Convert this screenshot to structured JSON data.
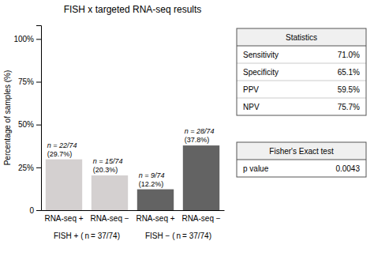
{
  "chart_data": {
    "type": "bar",
    "title": "FISH x targeted RNA-seq results",
    "categories": [
      "RNA-seq +",
      "RNA-seq −",
      "RNA-seq +",
      "RNA-seq −"
    ],
    "values": [
      29.7,
      20.3,
      12.2,
      37.8
    ],
    "colors": [
      "#d4d0d0",
      "#d4d0d0",
      "#636363",
      "#636363"
    ],
    "data_labels": true,
    "value_labels": [
      "(29.7%)",
      "(20.3%)",
      "(12.2%)",
      "(37.8%)"
    ],
    "annotations": [
      "n = 22/74",
      "n = 15/74",
      "n = 9/74",
      "n = 28/74"
    ],
    "groups": [
      "FISH + ( n = 37/74)",
      "FISH − ( n = 37/74)"
    ],
    "ylabel": "Percentage of samples (%)",
    "ylim": [
      0,
      108
    ],
    "yticks": [
      0,
      {
        "value": 25,
        "label": "25%"
      },
      {
        "value": 50,
        "label": "50%"
      },
      {
        "value": 75,
        "label": "75%"
      },
      {
        "value": 100,
        "label": "100%"
      }
    ],
    "grid": false,
    "tables": [
      {
        "title": "Statistics",
        "rows": [
          {
            "label": "Sensitivity",
            "value": "71.0%"
          },
          {
            "label": "Specificity",
            "value": "65.1%"
          },
          {
            "label": "PPV",
            "value": "59.5%"
          },
          {
            "label": "NPV",
            "value": "75.7%"
          }
        ]
      },
      {
        "title": "Fisher's Exact test",
        "rows": [
          {
            "label": "p value",
            "value": "0.0043"
          }
        ]
      }
    ]
  }
}
